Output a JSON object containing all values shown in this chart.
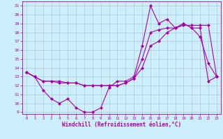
{
  "xlabel": "Windchill (Refroidissement éolien,°C)",
  "ylabel": "",
  "xlim": [
    -0.5,
    23.5
  ],
  "ylim": [
    8.8,
    21.5
  ],
  "yticks": [
    9,
    10,
    11,
    12,
    13,
    14,
    15,
    16,
    17,
    18,
    19,
    20,
    21
  ],
  "xticks": [
    0,
    1,
    2,
    3,
    4,
    5,
    6,
    7,
    8,
    9,
    10,
    11,
    12,
    13,
    14,
    15,
    16,
    17,
    18,
    19,
    20,
    21,
    22,
    23
  ],
  "bg_color": "#cceeff",
  "line_color": "#aa00aa",
  "grid_color": "#aacccc",
  "line1_x": [
    0,
    1,
    2,
    3,
    4,
    5,
    6,
    7,
    8,
    9,
    10,
    11,
    12,
    13,
    14,
    15,
    16,
    17,
    18,
    19,
    20,
    21,
    22,
    23
  ],
  "line1_y": [
    13.5,
    13.0,
    11.5,
    10.5,
    10.0,
    10.5,
    9.5,
    9.0,
    9.0,
    9.5,
    11.8,
    12.5,
    12.5,
    13.0,
    16.5,
    21.0,
    19.0,
    19.5,
    18.5,
    19.0,
    18.5,
    17.5,
    14.5,
    13.0
  ],
  "line2_x": [
    0,
    1,
    2,
    3,
    4,
    5,
    6,
    7,
    8,
    9,
    10,
    11,
    12,
    13,
    14,
    15,
    16,
    17,
    18,
    19,
    20,
    21,
    22,
    23
  ],
  "line2_y": [
    13.5,
    13.0,
    12.5,
    12.5,
    12.5,
    12.3,
    12.3,
    12.0,
    12.0,
    12.0,
    12.0,
    12.0,
    12.3,
    12.8,
    15.0,
    18.0,
    18.3,
    18.5,
    18.5,
    18.8,
    18.8,
    18.8,
    18.8,
    13.0
  ],
  "line3_x": [
    0,
    1,
    2,
    3,
    4,
    5,
    6,
    7,
    8,
    9,
    10,
    11,
    12,
    13,
    14,
    15,
    16,
    17,
    18,
    19,
    20,
    21,
    22,
    23
  ],
  "line3_y": [
    13.5,
    13.0,
    12.5,
    12.5,
    12.3,
    12.3,
    12.3,
    12.0,
    12.0,
    12.0,
    12.0,
    12.0,
    12.3,
    12.8,
    14.0,
    16.5,
    17.0,
    18.0,
    18.5,
    19.0,
    18.5,
    18.5,
    12.5,
    13.0
  ],
  "marker": "D",
  "markersize": 2.0,
  "linewidth": 0.8
}
